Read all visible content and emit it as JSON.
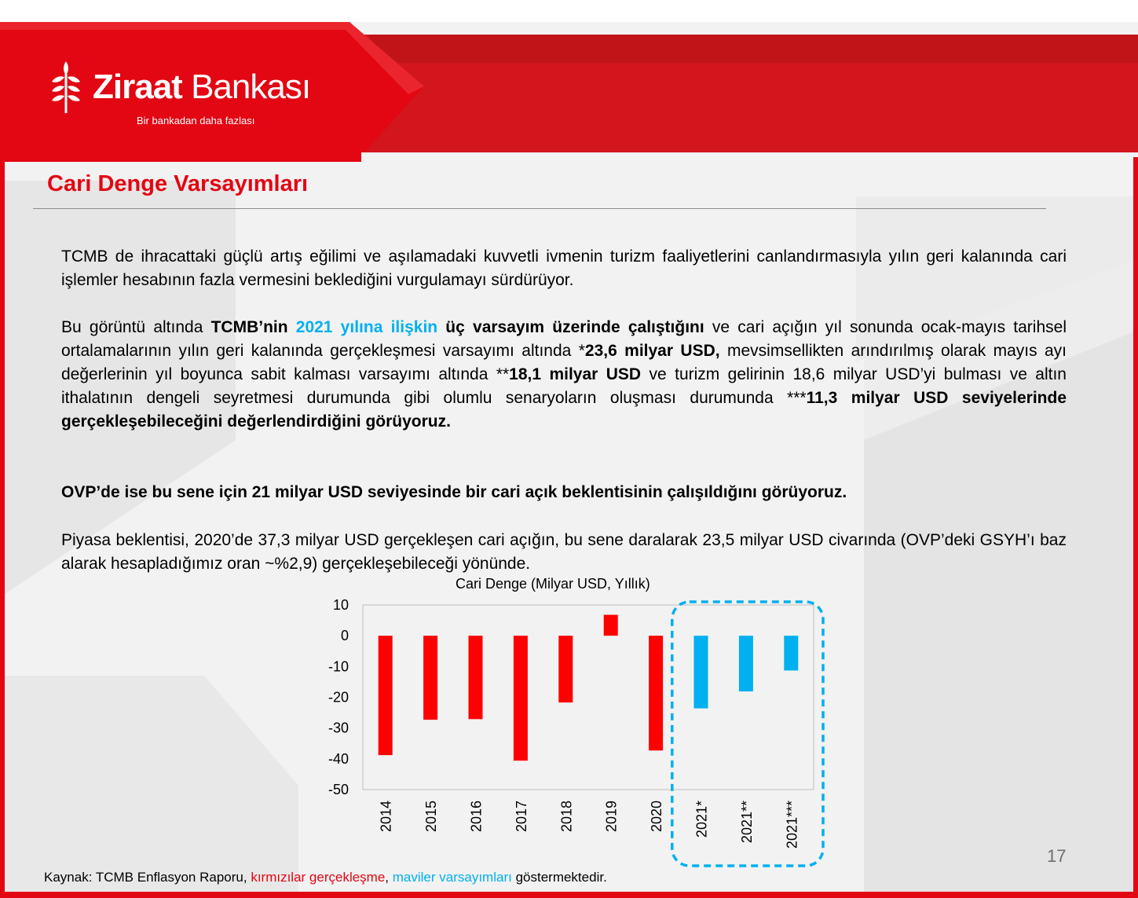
{
  "brand": {
    "name_bold": "Ziraat",
    "name_light": "Bankası",
    "tagline": "Bir bankadan daha fazlası",
    "red": "#e30613",
    "dark_red": "#b01116"
  },
  "slide": {
    "title": "Cari Denge Varsayımları",
    "page_number": "17"
  },
  "paragraphs": {
    "p1": "TCMB de ihracattaki güçlü artış eğilimi ve aşılamadaki kuvvetli ivmenin turizm faaliyetlerini canlandırmasıyla yılın geri kalanında cari işlemler hesabının fazla vermesini beklediğini vurgulamayı sürdürüyor.",
    "p2": {
      "s1": "Bu görüntü altında ",
      "s2": "TCMB’nin ",
      "s3": "2021 yılına ilişkin",
      "s4": " üç varsayım üzerinde çalıştığını",
      "s5": " ve cari açığın yıl sonunda ocak-mayıs tarihsel ortalamalarının yılın geri kalanında gerçekleşmesi varsayımı altında *",
      "s6": "23,6 milyar USD,",
      "s7": " mevsimsellikten arındırılmış olarak mayıs ayı değerlerinin yıl boyunca sabit kalması varsayımı altında **",
      "s8": "18,1 milyar USD",
      "s9": " ve turizm gelirinin 18,6 milyar USD’yi bulması ve altın ithalatının dengeli seyretmesi durumunda gibi olumlu senaryoların oluşması durumunda ***",
      "s10": "11,3 milyar USD seviyelerinde gerçekleşebileceğini değerlendirdiğini görüyoruz."
    },
    "p3": "OVP’de ise bu sene için 21 milyar USD seviyesinde bir cari açık beklentisinin çalışıldığını görüyoruz.",
    "p4": "Piyasa beklentisi, 2020’de 37,3 milyar USD gerçekleşen cari açığın, bu sene daralarak 23,5 milyar USD civarında (OVP’deki GSYH’ı baz alarak hesapladığımız oran ~%2,9) gerçekleşebileceği yönünde."
  },
  "chart_data": {
    "type": "bar",
    "title": "Cari Denge (Milyar USD, Yıllık)",
    "categories": [
      "2014",
      "2015",
      "2016",
      "2017",
      "2018",
      "2019",
      "2020",
      "2021*",
      "2021**",
      "2021***"
    ],
    "values": [
      -38.8,
      -27.3,
      -27.1,
      -40.6,
      -21.7,
      6.8,
      -37.3,
      -23.6,
      -18.1,
      -11.3
    ],
    "bar_colors": [
      "#ff0000",
      "#ff0000",
      "#ff0000",
      "#ff0000",
      "#ff0000",
      "#ff0000",
      "#ff0000",
      "#00b0f0",
      "#00b0f0",
      "#00b0f0"
    ],
    "ylim": [
      -50,
      10
    ],
    "yticks": [
      "10",
      "0",
      "-10",
      "-20",
      "-30",
      "-40",
      "-50"
    ],
    "grid": false,
    "highlight_box": "dashed blue around 2021 scenarios"
  },
  "footer": {
    "source_prefix": "Kaynak: TCMB Enflasyon Raporu, ",
    "source_red": "kırmızılar gerçekleşme",
    "source_sep": ", ",
    "source_blue": "maviler varsayımları",
    "source_suffix": " göstermektedir."
  }
}
